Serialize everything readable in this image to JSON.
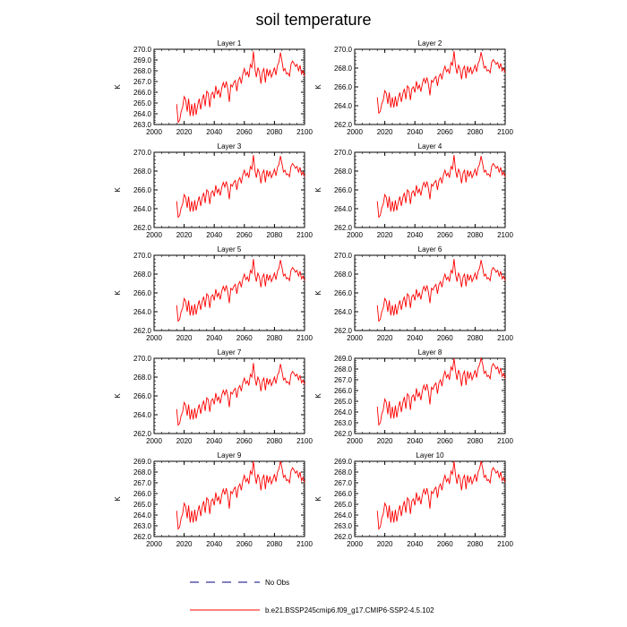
{
  "title": "soil temperature",
  "legend": {
    "obs_label": "No Obs",
    "model_label": "b.e21.BSSP245cmip6.f09_g17.CMIP6-SSP2-4.5.102",
    "model_color": "#ff0000",
    "obs_color": "#000080"
  },
  "chart_data": [
    {
      "type": "line",
      "title": "Layer 1",
      "ylabel": "K",
      "xlim": [
        2000,
        2100
      ],
      "ylim": [
        263.0,
        270.0
      ],
      "xticks": [
        "2000",
        "2020",
        "2040",
        "2060",
        "2080",
        "2100"
      ],
      "yticks": [
        "263.0",
        "264.0",
        "265.0",
        "266.0",
        "267.0",
        "268.0",
        "269.0",
        "270.0"
      ],
      "series": [
        {
          "color": "#ff0000",
          "offset": 0.0
        }
      ]
    },
    {
      "type": "line",
      "title": "Layer 2",
      "ylabel": "K",
      "xlim": [
        2000,
        2100
      ],
      "ylim": [
        262.0,
        270.0
      ],
      "xticks": [
        "2000",
        "2020",
        "2040",
        "2060",
        "2080",
        "2100"
      ],
      "yticks": [
        "262.0",
        "264.0",
        "266.0",
        "268.0",
        "270.0"
      ],
      "series": [
        {
          "color": "#ff0000",
          "offset": 0.0
        }
      ]
    },
    {
      "type": "line",
      "title": "Layer 3",
      "ylabel": "K",
      "xlim": [
        2000,
        2100
      ],
      "ylim": [
        262.0,
        270.0
      ],
      "xticks": [
        "2000",
        "2020",
        "2040",
        "2060",
        "2080",
        "2100"
      ],
      "yticks": [
        "262.0",
        "264.0",
        "266.0",
        "268.0",
        "270.0"
      ],
      "series": [
        {
          "color": "#ff0000",
          "offset": -0.1
        }
      ]
    },
    {
      "type": "line",
      "title": "Layer 4",
      "ylabel": "K",
      "xlim": [
        2000,
        2100
      ],
      "ylim": [
        262.0,
        270.0
      ],
      "xticks": [
        "2000",
        "2020",
        "2040",
        "2060",
        "2080",
        "2100"
      ],
      "yticks": [
        "262.0",
        "264.0",
        "266.0",
        "268.0",
        "270.0"
      ],
      "series": [
        {
          "color": "#ff0000",
          "offset": -0.1
        }
      ]
    },
    {
      "type": "line",
      "title": "Layer 5",
      "ylabel": "K",
      "xlim": [
        2000,
        2100
      ],
      "ylim": [
        262.0,
        270.0
      ],
      "xticks": [
        "2000",
        "2020",
        "2040",
        "2060",
        "2080",
        "2100"
      ],
      "yticks": [
        "262.0",
        "264.0",
        "266.0",
        "268.0",
        "270.0"
      ],
      "series": [
        {
          "color": "#ff0000",
          "offset": -0.2
        }
      ]
    },
    {
      "type": "line",
      "title": "Layer 6",
      "ylabel": "K",
      "xlim": [
        2000,
        2100
      ],
      "ylim": [
        262.0,
        270.0
      ],
      "xticks": [
        "2000",
        "2020",
        "2040",
        "2060",
        "2080",
        "2100"
      ],
      "yticks": [
        "262.0",
        "264.0",
        "266.0",
        "268.0",
        "270.0"
      ],
      "series": [
        {
          "color": "#ff0000",
          "offset": -0.2
        }
      ]
    },
    {
      "type": "line",
      "title": "Layer 7",
      "ylabel": "K",
      "xlim": [
        2000,
        2100
      ],
      "ylim": [
        262.0,
        270.0
      ],
      "xticks": [
        "2000",
        "2020",
        "2040",
        "2060",
        "2080",
        "2100"
      ],
      "yticks": [
        "262.0",
        "264.0",
        "266.0",
        "268.0",
        "270.0"
      ],
      "series": [
        {
          "color": "#ff0000",
          "offset": -0.3
        }
      ]
    },
    {
      "type": "line",
      "title": "Layer 8",
      "ylabel": "K",
      "xlim": [
        2000,
        2100
      ],
      "ylim": [
        262.0,
        269.0
      ],
      "xticks": [
        "2000",
        "2020",
        "2040",
        "2060",
        "2080",
        "2100"
      ],
      "yticks": [
        "262.0",
        "263.0",
        "264.0",
        "265.0",
        "266.0",
        "267.0",
        "268.0",
        "269.0"
      ],
      "series": [
        {
          "color": "#ff0000",
          "offset": -0.4
        }
      ]
    },
    {
      "type": "line",
      "title": "Layer 9",
      "ylabel": "K",
      "xlim": [
        2000,
        2100
      ],
      "ylim": [
        262.0,
        269.0
      ],
      "xticks": [
        "2000",
        "2020",
        "2040",
        "2060",
        "2080",
        "2100"
      ],
      "yticks": [
        "262.0",
        "263.0",
        "264.0",
        "265.0",
        "266.0",
        "267.0",
        "268.0",
        "269.0"
      ],
      "series": [
        {
          "color": "#ff0000",
          "offset": -0.5
        }
      ]
    },
    {
      "type": "line",
      "title": "Layer 10",
      "ylabel": "K",
      "xlim": [
        2000,
        2100
      ],
      "ylim": [
        262.0,
        269.0
      ],
      "xticks": [
        "2000",
        "2020",
        "2040",
        "2060",
        "2080",
        "2100"
      ],
      "yticks": [
        "262.0",
        "263.0",
        "264.0",
        "265.0",
        "266.0",
        "267.0",
        "268.0",
        "269.0"
      ],
      "series": [
        {
          "color": "#ff0000",
          "offset": -0.5
        }
      ]
    }
  ],
  "base_series": {
    "x_start": 2015,
    "x_step": 1,
    "values": [
      264.9,
      263.2,
      263.4,
      264.2,
      264.6,
      265.6,
      265.3,
      264.2,
      265.4,
      263.8,
      264.9,
      263.8,
      265.0,
      263.9,
      264.8,
      265.4,
      264.4,
      265.3,
      265.8,
      264.7,
      266.1,
      265.9,
      264.6,
      265.8,
      266.0,
      265.4,
      266.6,
      265.8,
      266.2,
      265.5,
      266.4,
      266.9,
      266.4,
      267.0,
      266.3,
      265.1,
      266.7,
      266.5,
      266.9,
      267.1,
      266.1,
      267.1,
      267.4,
      266.8,
      267.7,
      268.2,
      267.6,
      267.9,
      267.4,
      268.6,
      268.3,
      269.8,
      268.2,
      267.4,
      268.3,
      267.9,
      266.8,
      267.9,
      268.2,
      266.9,
      268.2,
      267.5,
      268.1,
      267.4,
      267.8,
      268.3,
      267.6,
      268.5,
      268.8,
      269.7,
      268.9,
      268.0,
      268.2,
      267.7,
      267.8,
      267.5,
      268.6,
      268.9,
      268.7,
      268.4,
      268.6,
      268.0,
      268.5,
      267.7,
      268.0,
      267.5
    ]
  }
}
